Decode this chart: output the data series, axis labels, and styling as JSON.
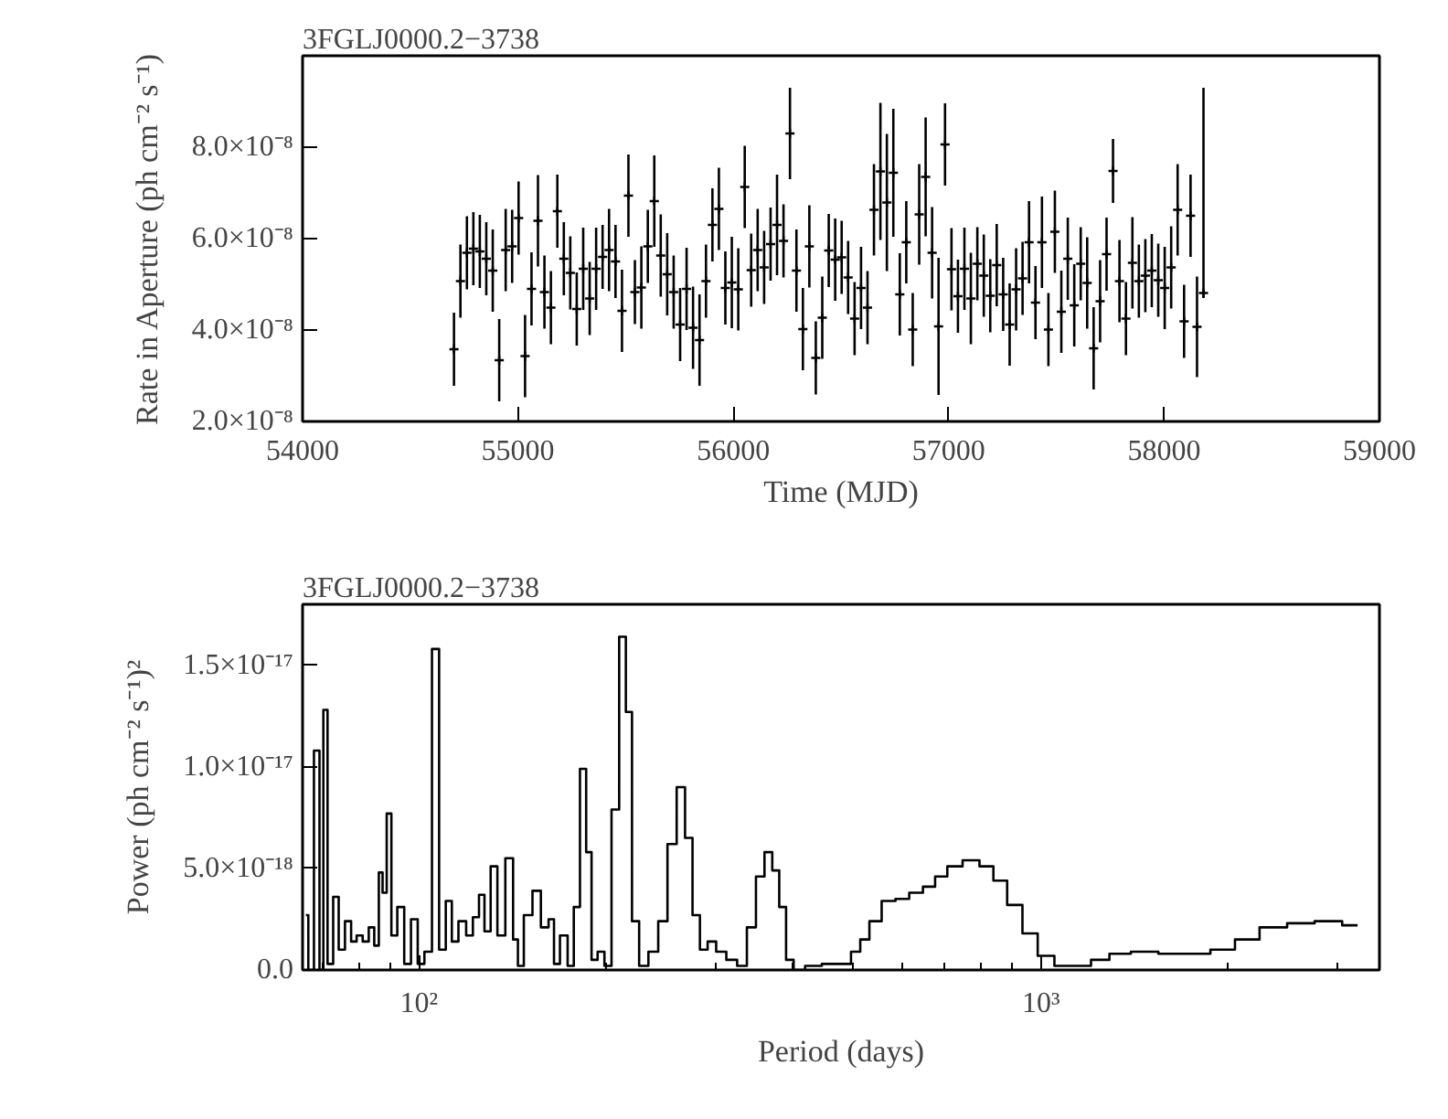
{
  "chart_data": [
    {
      "type": "scatter",
      "title": "3FGLJ0000.2−3738",
      "xlabel": "Time (MJD)",
      "ylabel": "Rate in Aperture (ph cm⁻² s⁻¹)",
      "xlim": [
        54000,
        59000
      ],
      "xticks": [
        54000,
        55000,
        56000,
        57000,
        58000,
        59000
      ],
      "ylim": [
        2e-08,
        1e-07
      ],
      "yticks": [
        {
          "value": 2e-08,
          "label": "2.0×10⁻⁸"
        },
        {
          "value": 4e-08,
          "label": "4.0×10⁻⁸"
        },
        {
          "value": 6e-08,
          "label": "6.0×10⁻⁸"
        },
        {
          "value": 8e-08,
          "label": "8.0×10⁻⁸"
        }
      ],
      "grid": false,
      "marker": "cross",
      "series": [
        {
          "color": "#000000",
          "x": [
            54703,
            54733,
            54763,
            54793,
            54823,
            54853,
            54883,
            54913,
            54943,
            54973,
            55003,
            55033,
            55063,
            55093,
            55123,
            55153,
            55183,
            55213,
            55243,
            55273,
            55303,
            55333,
            55363,
            55393,
            55423,
            55453,
            55483,
            55513,
            55543,
            55573,
            55603,
            55633,
            55663,
            55693,
            55723,
            55753,
            55783,
            55813,
            55843,
            55873,
            55903,
            55933,
            55963,
            55993,
            56023,
            56053,
            56083,
            56113,
            56143,
            56173,
            56203,
            56233,
            56263,
            56293,
            56323,
            56353,
            56383,
            56413,
            56443,
            56473,
            56503,
            56533,
            56563,
            56593,
            56623,
            56653,
            56683,
            56713,
            56743,
            56773,
            56803,
            56833,
            56863,
            56893,
            56923,
            56953,
            56983,
            57013,
            57043,
            57073,
            57103,
            57133,
            57163,
            57193,
            57223,
            57253,
            57283,
            57313,
            57343,
            57373,
            57403,
            57433,
            57463,
            57493,
            57523,
            57553,
            57583,
            57613,
            57643,
            57673,
            57703,
            57733,
            57763,
            57793,
            57823,
            57853,
            57883,
            57913,
            57943,
            57973,
            58003,
            58033,
            58063,
            58093,
            58123,
            58153,
            58183
          ],
          "values": [
            3.58e-08,
            5.07e-08,
            5.69e-08,
            5.78e-08,
            5.72e-08,
            5.56e-08,
            5.3e-08,
            3.34e-08,
            5.75e-08,
            5.83e-08,
            6.45e-08,
            3.43e-08,
            4.9e-08,
            6.39e-08,
            4.83e-08,
            4.49e-08,
            6.6e-08,
            5.56e-08,
            5.25e-08,
            4.46e-08,
            5.34e-08,
            4.69e-08,
            5.34e-08,
            5.6e-08,
            5.75e-08,
            5.5e-08,
            4.42e-08,
            6.94e-08,
            4.83e-08,
            4.93e-08,
            5.83e-08,
            6.82e-08,
            5.63e-08,
            5.22e-08,
            4.83e-08,
            4.12e-08,
            4.9e-08,
            4.05e-08,
            3.78e-08,
            5.07e-08,
            6.3e-08,
            6.65e-08,
            4.92e-08,
            5.04e-08,
            4.89e-08,
            7.13e-08,
            5.31e-08,
            5.75e-08,
            5.37e-08,
            5.88e-08,
            6.3e-08,
            5.95e-08,
            8.3e-08,
            5.3e-08,
            4.02e-08,
            5.83e-08,
            3.39e-08,
            4.27e-08,
            5.74e-08,
            5.54e-08,
            5.59e-08,
            5.15e-08,
            4.25e-08,
            4.92e-08,
            4.49e-08,
            6.63e-08,
            7.47e-08,
            6.79e-08,
            7.44e-08,
            4.78e-08,
            5.92e-08,
            4.01e-08,
            6.53e-08,
            7.35e-08,
            5.69e-08,
            4.08e-08,
            8.06e-08,
            5.33e-08,
            4.74e-08,
            5.34e-08,
            4.69e-08,
            5.45e-08,
            5.19e-08,
            4.75e-08,
            5.42e-08,
            4.78e-08,
            4.12e-08,
            4.89e-08,
            5.13e-08,
            5.92e-08,
            4.6e-08,
            5.92e-08,
            4.01e-08,
            6.15e-08,
            4.4e-08,
            5.56e-08,
            4.54e-08,
            5.45e-08,
            5.03e-08,
            3.6e-08,
            4.63e-08,
            5.66e-08,
            7.48e-08,
            5.07e-08,
            4.25e-08,
            5.47e-08,
            5.07e-08,
            5.19e-08,
            5.3e-08,
            5.09e-08,
            4.92e-08,
            5.37e-08,
            6.63e-08,
            4.19e-08,
            6.5e-08,
            4.07e-08,
            4.81e-08
          ],
          "errors": [
            8e-09,
            8e-09,
            8e-09,
            8e-09,
            8e-09,
            8e-09,
            9e-09,
            9e-09,
            9e-09,
            8e-09,
            8e-09,
            9e-09,
            8e-09,
            1e-08,
            8e-09,
            8e-09,
            8e-09,
            8e-09,
            8e-09,
            8e-09,
            9e-09,
            8e-09,
            9e-09,
            7e-09,
            9e-09,
            8e-09,
            9e-09,
            9e-09,
            7e-09,
            9e-09,
            8e-09,
            1e-08,
            9e-09,
            9e-09,
            8e-09,
            8e-09,
            9e-09,
            9e-09,
            1e-08,
            8e-09,
            8e-09,
            9e-09,
            8e-09,
            1e-08,
            9e-09,
            9e-09,
            8e-09,
            9e-09,
            8e-09,
            8e-09,
            1.1e-08,
            8e-09,
            1e-08,
            9e-09,
            9e-09,
            9e-09,
            8e-09,
            9e-09,
            8e-09,
            9e-09,
            8e-09,
            8e-09,
            8e-09,
            9e-09,
            8e-09,
            1e-08,
            1.5e-08,
            1.5e-08,
            1.4e-08,
            9e-09,
            9e-09,
            8e-09,
            1.1e-08,
            1.3e-08,
            1e-08,
            1.5e-08,
            9e-09,
            9e-09,
            8e-09,
            9e-09,
            1e-08,
            8e-09,
            9e-09,
            8e-09,
            9e-09,
            8e-09,
            9e-09,
            9e-09,
            8e-09,
            9e-09,
            8e-09,
            1e-08,
            8e-09,
            9e-09,
            9e-09,
            9e-09,
            9e-09,
            8e-09,
            1e-08,
            9e-09,
            9e-09,
            8e-09,
            7e-09,
            9e-09,
            8e-09,
            1e-08,
            8e-09,
            8e-09,
            8e-09,
            8e-09,
            9e-09,
            9e-09,
            1e-08,
            8e-09,
            9e-09,
            1.1e-08,
            [
              4.7e-08,
              9.3e-08
            ]
          ]
        }
      ]
    },
    {
      "type": "step",
      "title": "3FGLJ0000.2−3738",
      "xlabel": "Period (days)",
      "ylabel": "Power (ph cm⁻² s⁻¹)²",
      "log": "x",
      "xlim": [
        65,
        3500
      ],
      "xticks": [
        {
          "value": 100,
          "label": "10²"
        },
        {
          "value": 1000,
          "label": "10³"
        }
      ],
      "ylim": [
        0,
        1.8e-17
      ],
      "yticks": [
        {
          "value": 0,
          "label": "0.0"
        },
        {
          "value": 5e-18,
          "label": "5.0×10⁻¹⁸"
        },
        {
          "value": 1e-17,
          "label": "1.0×10⁻¹⁷"
        },
        {
          "value": 1.5e-17,
          "label": "1.5×10⁻¹⁷"
        }
      ],
      "grid": false,
      "series": [
        {
          "color": "#000000",
          "x": [
            65.8,
            67.0,
            68.6,
            69.8,
            70.6,
            72.0,
            73.6,
            75.0,
            77.1,
            78.5,
            80.3,
            82.1,
            84.0,
            85.5,
            86.9,
            87.9,
            89.6,
            91.0,
            93.6,
            95.8,
            98.4,
            100.7,
            103.4,
            106.5,
            109.0,
            111.9,
            114.0,
            117.5,
            120.7,
            123.5,
            126.3,
            128.6,
            132.2,
            135.2,
            140.2,
            143.2,
            145.3,
            149.6,
            154.9,
            159.2,
            164.0,
            165.7,
            171.4,
            175.4,
            179.4,
            183.6,
            187.8,
            191.1,
            196.4,
            201.0,
            207.0,
            212.7,
            217.5,
            222.6,
            229.3,
            238.4,
            246.6,
            255.3,
            264.0,
            271.6,
            279.0,
            286.9,
            295.4,
            305.6,
            318.5,
            331.1,
            342.3,
            354.1,
            364.6,
            375.1,
            383.9,
            394.6,
            406.0,
            429.5,
            459.6,
            486.6,
            503.5,
            521.0,
            538.8,
            570.5,
            596.8,
            631.6,
            660.7,
            691.1,
            723.2,
            773.8,
            819.5,
            857.8,
            907.5,
            960.5,
            1016,
            1087,
            1163,
            1245,
            1333,
            1459,
            1634,
            1789,
            1959,
            2146,
            2350,
            2632,
            2880,
            3228
          ],
          "values": [
            2.7e-18,
            0,
            1.08e-17,
            0,
            1.28e-17,
            3e-19,
            3.6e-18,
            1e-18,
            2.4e-18,
            1.4e-18,
            1.7e-18,
            1.4e-18,
            2.1e-18,
            1.2e-18,
            4.8e-18,
            3.8e-18,
            7.7e-18,
            1.7e-18,
            3.1e-18,
            3e-19,
            2.5e-18,
            3e-19,
            9e-19,
            1.58e-17,
            1e-18,
            3.4e-18,
            1.4e-18,
            2.4e-18,
            1.7e-18,
            2.6e-18,
            3.7e-18,
            1.9e-18,
            5.1e-18,
            1.7e-18,
            5.5e-18,
            1.5e-18,
            2e-19,
            2.7e-18,
            3.9e-18,
            2.1e-18,
            2.5e-18,
            3e-19,
            1.7e-18,
            2e-19,
            3.1e-18,
            9.9e-18,
            5.8e-18,
            5e-19,
            9e-19,
            2e-19,
            7.9e-18,
            1.64e-17,
            1.27e-17,
            2.4e-18,
            2e-19,
            9e-19,
            2.4e-18,
            6.2e-18,
            9e-18,
            6.5e-18,
            2.7e-18,
            1e-18,
            1.4e-18,
            9e-19,
            5e-19,
            2e-19,
            2.1e-18,
            4.6e-18,
            5.8e-18,
            4.9e-18,
            3.1e-18,
            5e-19,
            0,
            2e-19,
            3e-19,
            3e-19,
            9e-19,
            1.5e-18,
            2.4e-18,
            3.4e-18,
            3.5e-18,
            3.8e-18,
            4.1e-18,
            4.6e-18,
            5.1e-18,
            5.4e-18,
            5.1e-18,
            4.4e-18,
            3.2e-18,
            1.8e-18,
            7e-19,
            2e-19,
            2e-19,
            5e-19,
            8e-19,
            9e-19,
            8e-19,
            8e-19,
            1e-18,
            1.5e-18,
            2.1e-18,
            2.3e-18,
            2.4e-18,
            2.2e-18
          ]
        }
      ]
    }
  ]
}
